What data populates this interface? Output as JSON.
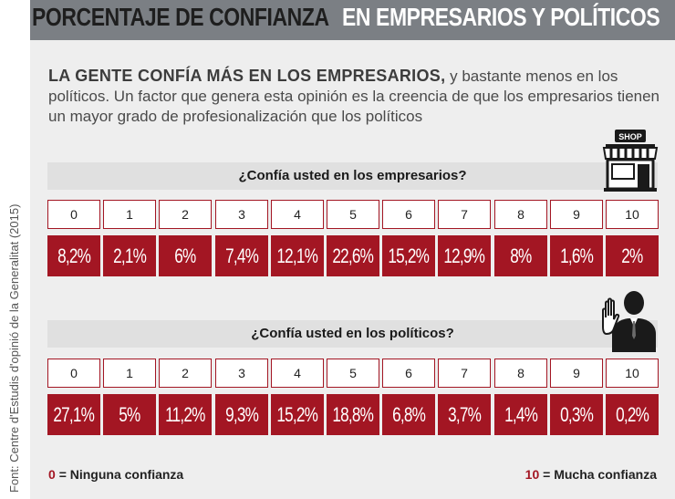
{
  "header": {
    "title_part1": "PORCENTAJE DE CONFIANZA",
    "title_part2": "EN EMPRESARIOS Y POLÍTICOS"
  },
  "intro": {
    "lead": "LA GENTE CONFÍA MÁS EN LOS EMPRESARIOS,",
    "body": " y bastante menos en los políticos. Un factor que genera esta opinión es la creencia de que los empresarios tienen un mayor grado de profesionalización que los políticos"
  },
  "source": "Font: Centre d'Estudis d'opinió de la Generalitat (2015)",
  "icons": {
    "shop": "shop-icon",
    "shop_label": "SHOP",
    "person": "businessman-icon"
  },
  "legend": {
    "min_value": "0",
    "min_label": "= Ninguna confianza",
    "max_value": "10",
    "max_label": "= Mucha confianza"
  },
  "colors": {
    "accent": "#a31623",
    "title_bar": "#7b7f84"
  },
  "chart_data": [
    {
      "type": "table",
      "title": "¿Confía usted en los empresarios?",
      "categories": [
        "0",
        "1",
        "2",
        "3",
        "4",
        "5",
        "6",
        "7",
        "8",
        "9",
        "10"
      ],
      "value_labels": [
        "8,2%",
        "2,1%",
        "6%",
        "7,4%",
        "12,1%",
        "22,6%",
        "15,2%",
        "12,9%",
        "8%",
        "1,6%",
        "2%"
      ],
      "values": [
        8.2,
        2.1,
        6,
        7.4,
        12.1,
        22.6,
        15.2,
        12.9,
        8,
        1.6,
        2
      ]
    },
    {
      "type": "table",
      "title": "¿Confía usted en los políticos?",
      "categories": [
        "0",
        "1",
        "2",
        "3",
        "4",
        "5",
        "6",
        "7",
        "8",
        "9",
        "10"
      ],
      "value_labels": [
        "27,1%",
        "5%",
        "11,2%",
        "9,3%",
        "15,2%",
        "18,8%",
        "6,8%",
        "3,7%",
        "1,4%",
        "0,3%",
        "0,2%"
      ],
      "values": [
        27.1,
        5,
        11.2,
        9.3,
        15.2,
        18.8,
        6.8,
        3.7,
        1.4,
        0.3,
        0.2
      ]
    }
  ]
}
